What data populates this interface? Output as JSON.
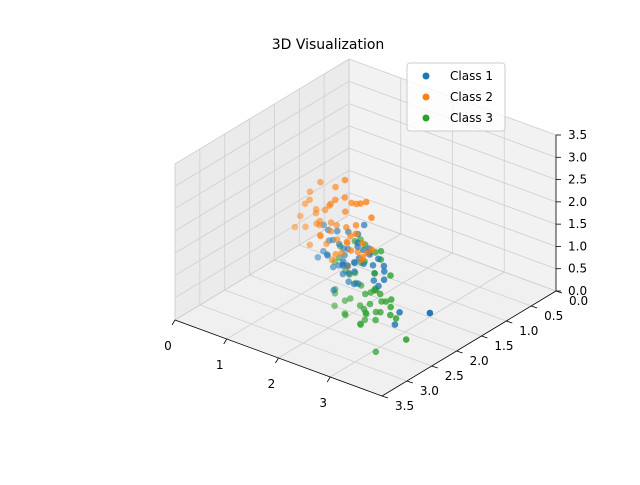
{
  "chart_data": {
    "type": "scatter",
    "projection": "3d",
    "title": "3D Visualization",
    "xlabel": "",
    "ylabel": "",
    "zlabel": "",
    "xlim": [
      0,
      4
    ],
    "ylim": [
      0,
      3.5
    ],
    "zlim": [
      0,
      3.5
    ],
    "x_ticks": [
      "0",
      "1",
      "2",
      "3"
    ],
    "y_ticks": [
      "0.0",
      "0.5",
      "1.0",
      "1.5",
      "2.0",
      "2.5",
      "3.0",
      "3.5"
    ],
    "z_ticks": [
      "0.0",
      "0.5",
      "1.0",
      "1.5",
      "2.0",
      "2.5",
      "3.0",
      "3.5"
    ],
    "grid": true,
    "legend": "top-right",
    "series": [
      {
        "name": "Class 1",
        "color": "#1f77b4",
        "points": [
          [
            2.0,
            2.1,
            1.5
          ],
          [
            2.2,
            2.4,
            1.8
          ],
          [
            2.5,
            1.9,
            1.2
          ],
          [
            1.8,
            2.0,
            1.0
          ],
          [
            2.1,
            2.2,
            2.0
          ],
          [
            2.3,
            2.6,
            1.6
          ],
          [
            1.9,
            1.8,
            1.4
          ],
          [
            2.6,
            2.3,
            1.9
          ],
          [
            2.4,
            2.0,
            0.9
          ],
          [
            2.0,
            2.5,
            2.2
          ],
          [
            2.7,
            2.7,
            1.7
          ],
          [
            1.7,
            2.2,
            1.3
          ],
          [
            2.2,
            1.7,
            1.1
          ],
          [
            2.5,
            2.8,
            2.3
          ],
          [
            2.1,
            2.0,
            0.7
          ],
          [
            1.6,
            1.9,
            1.6
          ],
          [
            2.8,
            2.4,
            1.5
          ],
          [
            2.3,
            2.1,
            1.3
          ],
          [
            2.0,
            1.6,
            0.8
          ],
          [
            2.4,
            2.5,
            1.4
          ],
          [
            1.9,
            2.3,
            1.8
          ],
          [
            2.6,
            2.0,
            1.0
          ],
          [
            2.2,
            2.8,
            2.6
          ],
          [
            2.9,
            2.6,
            2.1
          ],
          [
            1.8,
            1.7,
            1.2
          ],
          [
            2.5,
            2.2,
            1.7
          ],
          [
            2.1,
            2.7,
            1.9
          ],
          [
            2.3,
            1.8,
            0.6
          ],
          [
            2.0,
            2.2,
            1.2
          ],
          [
            2.7,
            2.1,
            1.3
          ],
          [
            1.5,
            2.0,
            1.1
          ],
          [
            2.4,
            2.9,
            2.4
          ],
          [
            2.6,
            2.6,
            1.8
          ],
          [
            2.2,
            2.0,
            1.5
          ],
          [
            1.9,
            2.1,
            0.9
          ],
          [
            2.8,
            2.8,
            2.0
          ],
          [
            2.3,
            2.4,
            1.1
          ],
          [
            2.0,
            1.9,
            1.7
          ],
          [
            2.5,
            2.5,
            1.2
          ],
          [
            2.1,
            2.3,
            1.4
          ],
          [
            3.0,
            2.2,
            0.3
          ],
          [
            2.7,
            2.9,
            2.2
          ],
          [
            1.7,
            1.8,
            0.8
          ],
          [
            2.4,
            2.3,
            1.6
          ],
          [
            2.2,
            2.6,
            1.0
          ],
          [
            2.9,
            2.0,
            0.4
          ],
          [
            3.1,
            1.6,
            0.2
          ],
          [
            2.6,
            2.4,
            2.5
          ],
          [
            2.0,
            2.4,
            1.3
          ],
          [
            1.8,
            2.5,
            1.5
          ]
        ]
      },
      {
        "name": "Class 2",
        "color": "#ff7f0e",
        "points": [
          [
            0.5,
            1.0,
            1.0
          ],
          [
            0.8,
            1.2,
            1.4
          ],
          [
            0.3,
            0.9,
            0.6
          ],
          [
            1.0,
            1.4,
            1.2
          ],
          [
            0.6,
            0.7,
            0.8
          ],
          [
            1.2,
            1.1,
            1.5
          ],
          [
            0.4,
            1.3,
            1.3
          ],
          [
            0.9,
            0.8,
            0.5
          ],
          [
            1.4,
            1.5,
            1.0
          ],
          [
            0.7,
            1.0,
            1.6
          ],
          [
            1.1,
            1.6,
            0.9
          ],
          [
            0.2,
            0.8,
            0.4
          ],
          [
            1.3,
            0.9,
            1.1
          ],
          [
            0.5,
            1.5,
            1.2
          ],
          [
            1.6,
            1.3,
            0.7
          ],
          [
            0.8,
            0.6,
            1.0
          ],
          [
            0.3,
            1.1,
            0.2
          ],
          [
            1.0,
            1.0,
            0.3
          ],
          [
            1.5,
            1.8,
            1.3
          ],
          [
            0.6,
            1.2,
            1.8
          ],
          [
            1.2,
            1.4,
            0.6
          ],
          [
            0.9,
            1.6,
            1.5
          ],
          [
            0.4,
            0.5,
            0.9
          ],
          [
            1.7,
            1.5,
            1.1
          ],
          [
            0.7,
            1.3,
            0.7
          ],
          [
            1.1,
            0.8,
            1.3
          ],
          [
            0.2,
            1.0,
            1.1
          ],
          [
            1.4,
            1.2,
            0.4
          ],
          [
            0.5,
            0.6,
            1.4
          ],
          [
            1.0,
            1.7,
            1.7
          ],
          [
            0.8,
            1.1,
            0.2
          ],
          [
            1.3,
            1.6,
            1.4
          ],
          [
            0.6,
            0.9,
            1.2
          ],
          [
            1.8,
            1.6,
            0.9
          ],
          [
            0.3,
            1.4,
            0.8
          ],
          [
            1.2,
            1.9,
            1.6
          ],
          [
            0.9,
            1.3,
            0.9
          ],
          [
            1.5,
            1.1,
            0.6
          ],
          [
            0.4,
            1.2,
            1.5
          ],
          [
            1.1,
            1.2,
            1.0
          ],
          [
            2.0,
            1.9,
            1.3
          ],
          [
            0.7,
            0.7,
            0.3
          ],
          [
            1.6,
            1.7,
            1.2
          ],
          [
            0.5,
            1.1,
            0.5
          ],
          [
            1.3,
            1.3,
            1.7
          ],
          [
            0.2,
            0.6,
            0.7
          ],
          [
            1.9,
            2.0,
            1.0
          ],
          [
            1.0,
            0.9,
            0.8
          ],
          [
            0.6,
            1.5,
            1.0
          ],
          [
            1.4,
            1.8,
            0.8
          ]
        ]
      },
      {
        "name": "Class 3",
        "color": "#2ca02c",
        "points": [
          [
            3.0,
            3.0,
            2.0
          ],
          [
            3.2,
            2.8,
            1.6
          ],
          [
            2.8,
            3.2,
            2.3
          ],
          [
            3.4,
            3.1,
            1.8
          ],
          [
            3.1,
            2.6,
            1.3
          ],
          [
            2.9,
            2.9,
            2.6
          ],
          [
            3.3,
            3.3,
            2.1
          ],
          [
            3.5,
            2.9,
            1.5
          ],
          [
            3.0,
            2.7,
            1.1
          ],
          [
            3.2,
            3.4,
            2.4
          ],
          [
            2.7,
            2.8,
            1.7
          ],
          [
            3.6,
            3.2,
            2.0
          ],
          [
            3.1,
            3.0,
            0.9
          ],
          [
            2.8,
            2.6,
            1.9
          ],
          [
            3.4,
            2.7,
            1.2
          ],
          [
            3.0,
            3.3,
            2.8
          ],
          [
            3.3,
            2.9,
            1.0
          ],
          [
            2.9,
            3.1,
            1.4
          ],
          [
            3.5,
            3.4,
            2.2
          ],
          [
            3.2,
            2.5,
            0.8
          ],
          [
            2.6,
            2.9,
            2.1
          ],
          [
            3.1,
            3.2,
            1.6
          ],
          [
            3.7,
            3.0,
            1.7
          ],
          [
            3.0,
            2.8,
            2.5
          ],
          [
            3.3,
            3.1,
            1.3
          ],
          [
            2.8,
            3.0,
            1.0
          ],
          [
            3.4,
            3.3,
            2.6
          ],
          [
            3.6,
            2.8,
            1.1
          ],
          [
            3.1,
            2.7,
            2.3
          ],
          [
            2.9,
            2.7,
            0.7
          ],
          [
            3.2,
            3.1,
            2.9
          ],
          [
            3.5,
            3.1,
            1.4
          ],
          [
            3.0,
            3.4,
            1.9
          ],
          [
            3.3,
            2.6,
            1.8
          ],
          [
            2.7,
            3.1,
            1.2
          ],
          [
            3.8,
            3.3,
            1.9
          ],
          [
            3.1,
            2.9,
            1.5
          ],
          [
            3.4,
            2.9,
            2.4
          ],
          [
            2.9,
            3.3,
            1.7
          ],
          [
            3.2,
            2.7,
            1.0
          ],
          [
            3.6,
            3.4,
            1.6
          ],
          [
            3.0,
            2.9,
            1.2
          ],
          [
            3.7,
            2.7,
            0.6
          ],
          [
            2.5,
            2.3,
            0.5
          ],
          [
            3.3,
            3.2,
            1.1
          ],
          [
            2.8,
            2.4,
            1.5
          ],
          [
            3.5,
            3.0,
            2.7
          ],
          [
            3.1,
            3.3,
            1.3
          ],
          [
            2.6,
            2.2,
            0.9
          ],
          [
            3.4,
            3.0,
            0.4
          ]
        ]
      }
    ]
  }
}
